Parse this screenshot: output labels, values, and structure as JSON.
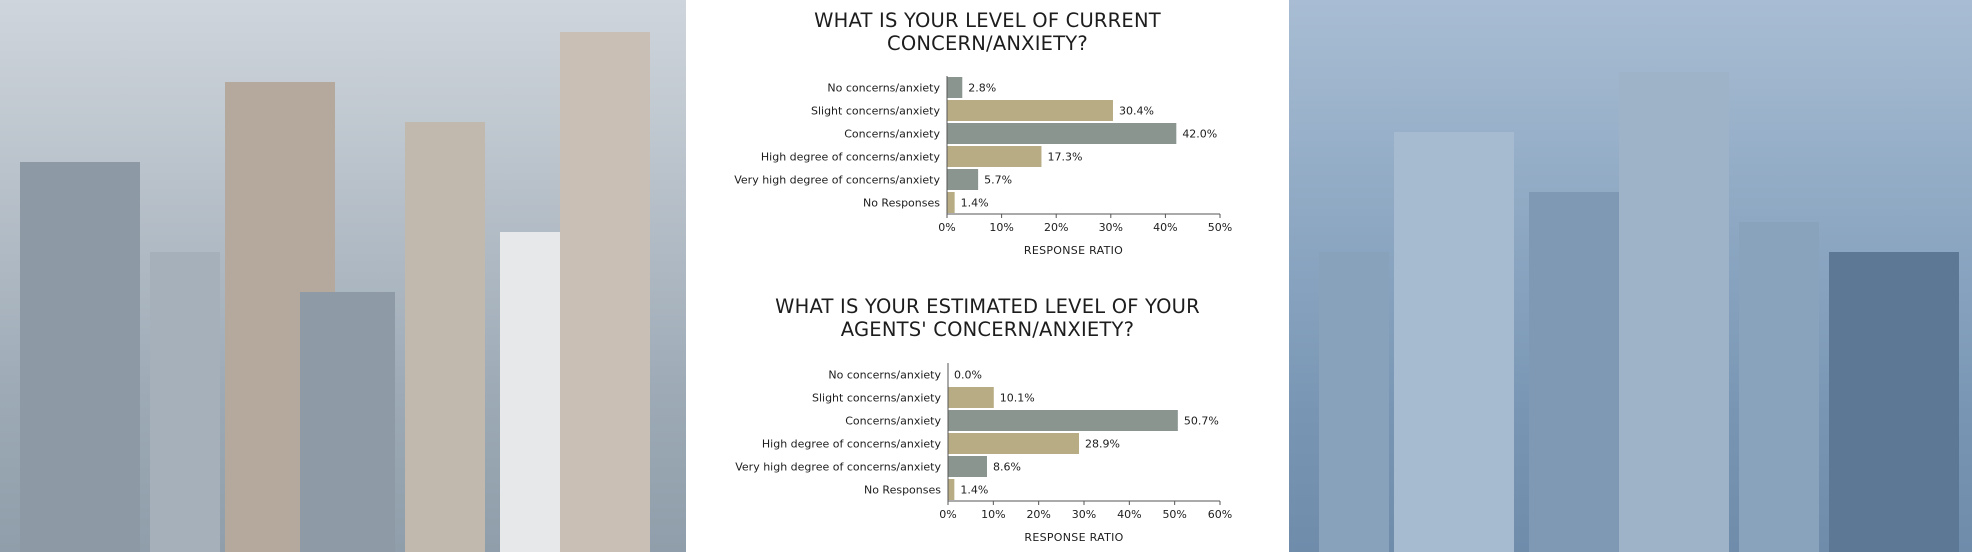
{
  "colors": {
    "gray": "#8a9590",
    "tan": "#b7ac83",
    "axis": "#555555",
    "text": "#1d1d1d"
  },
  "chart_data": [
    {
      "type": "bar",
      "orientation": "horizontal",
      "title": "WHAT IS YOUR LEVEL OF CURRENT CONCERN/ANXIETY?",
      "title_lines": [
        "WHAT IS YOUR LEVEL OF CURRENT",
        "CONCERN/ANXIETY?"
      ],
      "categories": [
        "No concerns/anxiety",
        "Slight concerns/anxiety",
        "Concerns/anxiety",
        "High degree of concerns/anxiety",
        "Very high degree of concerns/anxiety",
        "No Responses"
      ],
      "values": [
        2.8,
        30.4,
        42.0,
        17.3,
        5.7,
        1.4
      ],
      "value_labels": [
        "2.8%",
        "30.4%",
        "42.0%",
        "17.3%",
        "5.7%",
        "1.4%"
      ],
      "bar_colors": [
        "gray",
        "tan",
        "gray",
        "tan",
        "gray",
        "tan"
      ],
      "xlabel": "RESPONSE RATIO",
      "xlim": [
        0,
        50
      ],
      "xticks": [
        0,
        10,
        20,
        30,
        40,
        50
      ],
      "xtick_labels": [
        "0%",
        "10%",
        "20%",
        "30%",
        "40%",
        "50%"
      ],
      "grid": false
    },
    {
      "type": "bar",
      "orientation": "horizontal",
      "title": "WHAT IS YOUR ESTIMATED LEVEL OF YOUR AGENTS' CONCERN/ANXIETY?",
      "title_lines": [
        "WHAT IS YOUR ESTIMATED LEVEL OF YOUR",
        "AGENTS' CONCERN/ANXIETY?"
      ],
      "categories": [
        "No concerns/anxiety",
        "Slight concerns/anxiety",
        "Concerns/anxiety",
        "High degree of concerns/anxiety",
        "Very high degree of concerns/anxiety",
        "No Responses"
      ],
      "values": [
        0.0,
        10.1,
        50.7,
        28.9,
        8.6,
        1.4
      ],
      "value_labels": [
        "0.0%",
        "10.1%",
        "50.7%",
        "28.9%",
        "8.6%",
        "1.4%"
      ],
      "bar_colors": [
        "gray",
        "tan",
        "gray",
        "tan",
        "gray",
        "tan"
      ],
      "xlabel": "RESPONSE RATIO",
      "xlim": [
        0,
        60
      ],
      "xticks": [
        0,
        10,
        20,
        30,
        40,
        50,
        60
      ],
      "xtick_labels": [
        "0%",
        "10%",
        "20%",
        "30%",
        "40%",
        "50%",
        "60%"
      ],
      "grid": false
    }
  ]
}
